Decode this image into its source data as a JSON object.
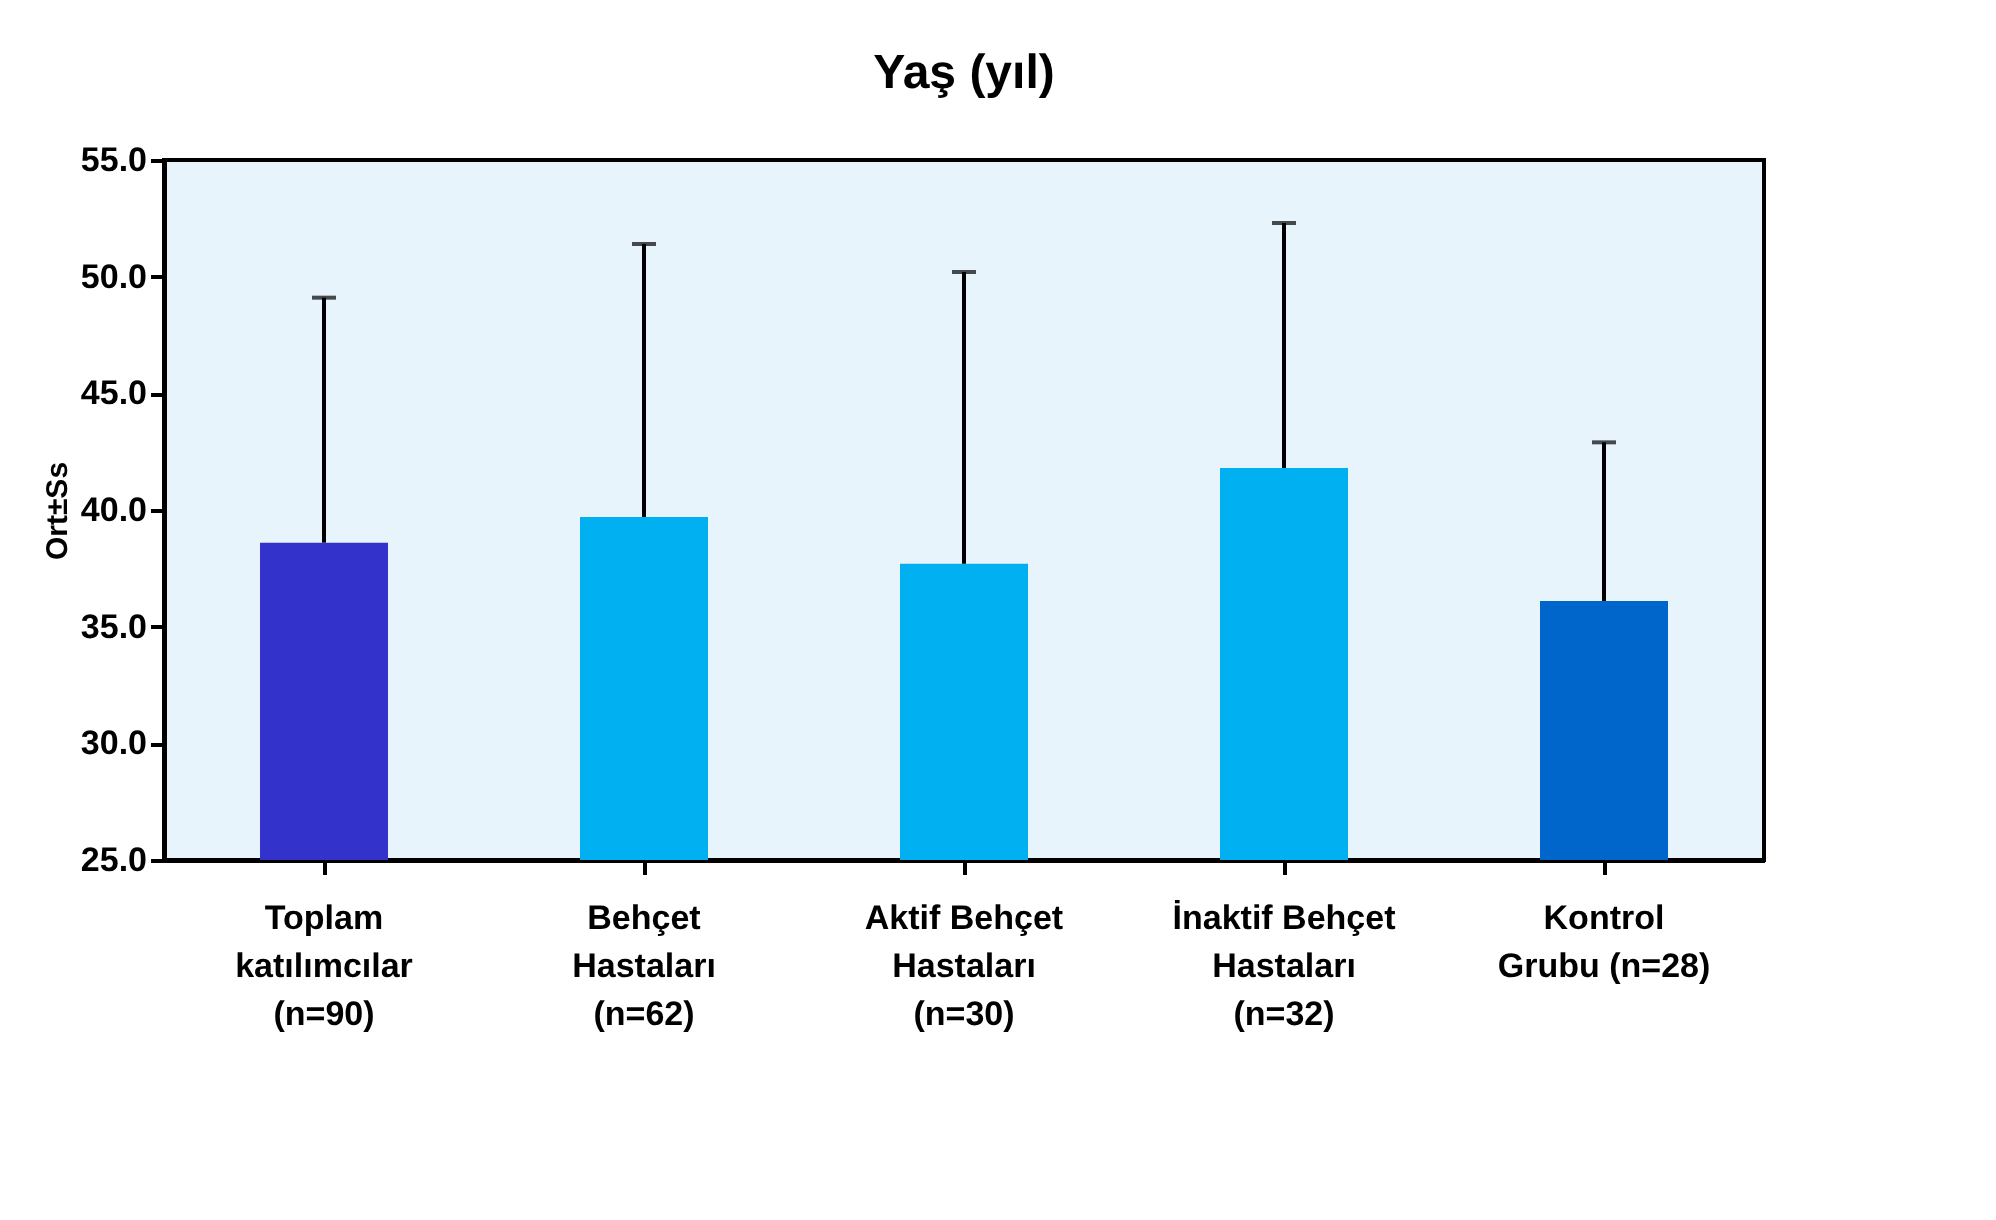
{
  "chart_data": {
    "type": "bar",
    "title": "Yaş (yıl)",
    "ylabel": "Ort±Ss",
    "categories": [
      "Toplam\nkatılımcılar\n(n=90)",
      "Behçet\nHastaları\n(n=62)",
      "Aktif Behçet\nHastaları\n(n=30)",
      "İnaktif Behçet\nHastaları\n(n=32)",
      "Kontrol\nGrubu (n=28)"
    ],
    "values": [
      38.6,
      39.7,
      37.7,
      41.8,
      36.1
    ],
    "errors": [
      [
        38.6,
        49.1
      ],
      [
        39.7,
        51.4
      ],
      [
        37.7,
        50.2
      ],
      [
        41.8,
        52.3
      ],
      [
        36.1,
        42.9
      ]
    ],
    "colors": [
      "#3333cc",
      "#00b0f0",
      "#00b0f0",
      "#00b0f0",
      "#0066cc"
    ],
    "ylim": [
      25,
      55
    ],
    "yticks": [
      {
        "value": 25,
        "label": "25.0"
      },
      {
        "value": 30,
        "label": "30.0"
      },
      {
        "value": 35,
        "label": "35.0"
      },
      {
        "value": 40,
        "label": "40.0"
      },
      {
        "value": 45,
        "label": "45.0"
      },
      {
        "value": 50,
        "label": "50.0"
      },
      {
        "value": 55,
        "label": "55.0"
      }
    ],
    "grid": false,
    "legend": false
  }
}
